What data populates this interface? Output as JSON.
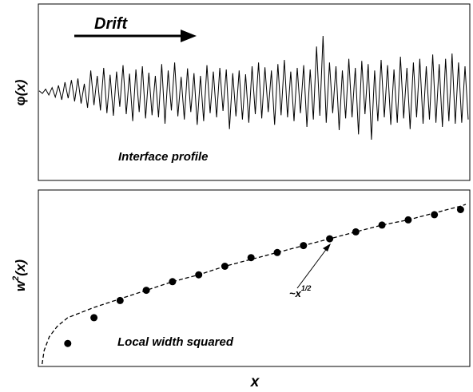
{
  "colors": {
    "line": "#000000",
    "marker": "#000000",
    "background": "#ffffff"
  },
  "chart_data": [
    {
      "type": "line",
      "title": "",
      "annotation_text": "Interface profile",
      "arrow_label": "Drift",
      "ylabel_symbol": "φ",
      "ylabel_arg": "(x)",
      "ticks": "none",
      "grid": false,
      "x": [
        0,
        4,
        8,
        12,
        16,
        20,
        24,
        28,
        32,
        36,
        40,
        44,
        48,
        52,
        56,
        60,
        64,
        68,
        72,
        76,
        80,
        84,
        88,
        92,
        96,
        100,
        104,
        108,
        112,
        116,
        120,
        124,
        128,
        132,
        136,
        140,
        144,
        148,
        152,
        156,
        160,
        164,
        168,
        172,
        176,
        180,
        184,
        188,
        192,
        196,
        200,
        204,
        208,
        212,
        216,
        220,
        224,
        228,
        232,
        236,
        240,
        244,
        248,
        252,
        256,
        260,
        264,
        268,
        272,
        276,
        280,
        284,
        288,
        292,
        296,
        300,
        304,
        308,
        312,
        316,
        320,
        324,
        328,
        332,
        336,
        340,
        344,
        348,
        352,
        356,
        360,
        364,
        368,
        372,
        376,
        380,
        384,
        388,
        392,
        396,
        400,
        404,
        408,
        412,
        416,
        420,
        424,
        428,
        432,
        436,
        440,
        444,
        448,
        452,
        456,
        460,
        464,
        468,
        472,
        476,
        480,
        484,
        488,
        492,
        496,
        500,
        504,
        508,
        512,
        516,
        520,
        524,
        528,
        532
      ],
      "values": [
        0.02,
        -0.03,
        0.05,
        -0.06,
        0.08,
        -0.1,
        0.12,
        -0.15,
        0.18,
        -0.12,
        0.22,
        -0.18,
        0.25,
        -0.22,
        0.15,
        -0.3,
        0.4,
        -0.25,
        0.3,
        -0.35,
        0.45,
        -0.4,
        0.32,
        -0.45,
        0.38,
        -0.28,
        0.5,
        -0.42,
        0.34,
        -0.55,
        0.42,
        -0.38,
        0.48,
        -0.5,
        0.36,
        -0.44,
        0.3,
        -0.48,
        0.52,
        -0.6,
        0.4,
        -0.35,
        0.55,
        -0.46,
        0.28,
        -0.52,
        0.44,
        -0.38,
        0.35,
        -0.62,
        0.3,
        -0.55,
        0.5,
        -0.4,
        0.38,
        -0.48,
        0.45,
        -0.36,
        0.42,
        -0.7,
        0.35,
        -0.46,
        0.4,
        -0.52,
        0.33,
        -0.58,
        0.48,
        -0.42,
        0.55,
        -0.5,
        0.46,
        -0.38,
        0.4,
        -0.62,
        0.52,
        -0.44,
        0.6,
        -0.48,
        0.38,
        -0.55,
        0.45,
        -0.4,
        0.5,
        -0.66,
        0.42,
        -0.52,
        0.85,
        -0.45,
        1.05,
        -0.58,
        0.55,
        -0.4,
        0.48,
        -0.72,
        0.4,
        -0.5,
        0.62,
        -0.48,
        0.45,
        -0.8,
        0.58,
        -0.42,
        0.52,
        -0.9,
        0.4,
        -0.55,
        0.6,
        -0.48,
        0.5,
        -0.62,
        0.42,
        -0.58,
        0.66,
        -0.5,
        0.45,
        -0.7,
        0.55,
        -0.48,
        0.62,
        -0.6,
        0.48,
        -0.52,
        0.7,
        -0.58,
        0.52,
        -0.66,
        0.62,
        -0.55,
        0.72,
        -0.6,
        0.55,
        -0.58,
        0.48,
        -0.52
      ],
      "xlim": [
        0,
        532
      ],
      "ylim": [
        -1.2,
        1.2
      ]
    },
    {
      "type": "scatter",
      "title": "",
      "annotation_text": "Local width squared",
      "ylabel_main": "w",
      "ylabel_sup": "2",
      "ylabel_arg": "(x)",
      "xlabel": "x",
      "fit_label_main": "~x",
      "fit_label_sup": "1/2",
      "fit_exponent": 0.5,
      "ticks": "none",
      "grid": false,
      "x": [
        1,
        2,
        3,
        4,
        5,
        6,
        7,
        8,
        9,
        10,
        11,
        12,
        13,
        14,
        15,
        16
      ],
      "values": [
        0.12,
        0.27,
        0.37,
        0.43,
        0.48,
        0.52,
        0.57,
        0.62,
        0.65,
        0.69,
        0.73,
        0.77,
        0.81,
        0.84,
        0.87,
        0.9
      ],
      "fit_x": [
        0.02,
        0.1,
        0.3,
        0.6,
        1,
        2,
        3,
        4,
        5,
        6,
        7,
        8,
        9,
        10,
        11,
        12,
        13,
        14,
        15,
        16,
        16.2
      ],
      "fit_values": [
        0.0,
        0.08,
        0.16,
        0.22,
        0.27,
        0.33,
        0.38,
        0.43,
        0.48,
        0.52,
        0.57,
        0.61,
        0.65,
        0.69,
        0.73,
        0.77,
        0.81,
        0.84,
        0.88,
        0.92,
        0.93
      ],
      "xlim": [
        0,
        16.2
      ],
      "ylim": [
        0,
        1
      ]
    }
  ]
}
